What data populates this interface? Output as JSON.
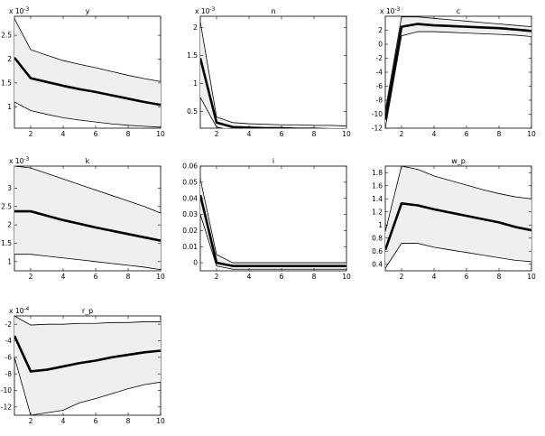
{
  "chart_data": [
    {
      "type": "line",
      "title": "y",
      "multiplier": {
        "base": "x 10",
        "exp": "-3"
      },
      "x": [
        1,
        2,
        3,
        4,
        5,
        6,
        7,
        8,
        9,
        10
      ],
      "xlim": [
        1,
        10
      ],
      "ylim": [
        0.55,
        2.9
      ],
      "xticks": [
        2,
        4,
        6,
        8,
        10
      ],
      "yticks": [
        1,
        1.5,
        2,
        2.5
      ],
      "series": [
        {
          "role": "upper",
          "values": [
            2.85,
            2.2,
            2.08,
            1.97,
            1.89,
            1.82,
            1.74,
            1.66,
            1.59,
            1.53
          ]
        },
        {
          "role": "median",
          "values": [
            2.03,
            1.6,
            1.52,
            1.44,
            1.37,
            1.31,
            1.24,
            1.17,
            1.1,
            1.04
          ]
        },
        {
          "role": "lower",
          "values": [
            1.1,
            0.92,
            0.84,
            0.77,
            0.72,
            0.68,
            0.64,
            0.61,
            0.59,
            0.57
          ]
        }
      ]
    },
    {
      "type": "line",
      "title": "n",
      "multiplier": {
        "base": "x 10",
        "exp": "-3"
      },
      "x": [
        1,
        2,
        3,
        4,
        5,
        6,
        7,
        8,
        9,
        10
      ],
      "xlim": [
        1,
        10
      ],
      "ylim": [
        0.2,
        2.2
      ],
      "xticks": [
        2,
        4,
        6,
        8,
        10
      ],
      "yticks": [
        0.5,
        1,
        1.5,
        2
      ],
      "series": [
        {
          "role": "upper",
          "values": [
            2.1,
            0.4,
            0.3,
            0.28,
            0.27,
            0.26,
            0.26,
            0.25,
            0.25,
            0.24
          ]
        },
        {
          "role": "median",
          "values": [
            1.45,
            0.3,
            0.22,
            0.21,
            0.2,
            0.2,
            0.19,
            0.19,
            0.18,
            0.18
          ]
        },
        {
          "role": "lower",
          "values": [
            0.75,
            0.22,
            0.16,
            0.15,
            0.15,
            0.14,
            0.14,
            0.14,
            0.13,
            0.13
          ]
        }
      ]
    },
    {
      "type": "line",
      "title": "c",
      "multiplier": {
        "base": "x 10",
        "exp": "-3"
      },
      "x": [
        1,
        2,
        3,
        4,
        5,
        6,
        7,
        8,
        9,
        10
      ],
      "xlim": [
        1,
        10
      ],
      "ylim": [
        -12,
        4
      ],
      "xticks": [
        2,
        4,
        6,
        8,
        10
      ],
      "yticks": [
        -12,
        -10,
        -8,
        -6,
        -4,
        -2,
        0,
        2
      ],
      "series": [
        {
          "role": "upper",
          "values": [
            -9.5,
            3.9,
            3.9,
            3.7,
            3.5,
            3.3,
            3.1,
            2.9,
            2.7,
            2.5
          ]
        },
        {
          "role": "median",
          "values": [
            -10.8,
            2.5,
            2.9,
            2.7,
            2.6,
            2.5,
            2.4,
            2.3,
            2.1,
            1.9
          ]
        },
        {
          "role": "lower",
          "values": [
            -12,
            1.2,
            1.8,
            1.8,
            1.7,
            1.6,
            1.5,
            1.4,
            1.3,
            1.1
          ]
        }
      ]
    },
    {
      "type": "line",
      "title": "k",
      "multiplier": {
        "base": "x 10",
        "exp": "-3"
      },
      "x": [
        1,
        2,
        3,
        4,
        5,
        6,
        7,
        8,
        9,
        10
      ],
      "xlim": [
        1,
        10
      ],
      "ylim": [
        0.75,
        3.6
      ],
      "xticks": [
        2,
        4,
        6,
        8,
        10
      ],
      "yticks": [
        1,
        1.5,
        2,
        2.5,
        3
      ],
      "series": [
        {
          "role": "upper",
          "values": [
            3.6,
            3.55,
            3.4,
            3.25,
            3.1,
            2.95,
            2.8,
            2.65,
            2.5,
            2.32
          ]
        },
        {
          "role": "median",
          "values": [
            2.37,
            2.37,
            2.25,
            2.13,
            2.03,
            1.93,
            1.84,
            1.75,
            1.66,
            1.57
          ]
        },
        {
          "role": "lower",
          "values": [
            1.2,
            1.2,
            1.15,
            1.1,
            1.05,
            1.0,
            0.95,
            0.9,
            0.85,
            0.78
          ]
        }
      ]
    },
    {
      "type": "line",
      "title": "i",
      "x": [
        1,
        2,
        3,
        4,
        5,
        6,
        7,
        8,
        9,
        10
      ],
      "xlim": [
        1,
        10
      ],
      "ylim": [
        -0.005,
        0.06
      ],
      "xticks": [
        2,
        4,
        6,
        8,
        10
      ],
      "yticks": [
        0,
        0.01,
        0.02,
        0.03,
        0.04,
        0.05,
        0.06
      ],
      "series": [
        {
          "role": "upper",
          "values": [
            0.052,
            0.005,
            0.0,
            0.0,
            0.0,
            0.0,
            0.0,
            0.0,
            0.0,
            0.0
          ]
        },
        {
          "role": "median",
          "values": [
            0.042,
            0.0,
            -0.002,
            -0.002,
            -0.002,
            -0.002,
            -0.002,
            -0.002,
            -0.002,
            -0.002
          ]
        },
        {
          "role": "lower",
          "values": [
            0.03,
            -0.002,
            -0.004,
            -0.004,
            -0.004,
            -0.004,
            -0.004,
            -0.004,
            -0.004,
            -0.004
          ]
        }
      ]
    },
    {
      "type": "line",
      "title": "w_p",
      "x": [
        1,
        2,
        3,
        4,
        5,
        6,
        7,
        8,
        9,
        10
      ],
      "xlim": [
        1,
        10
      ],
      "ylim": [
        0.3,
        1.9
      ],
      "xticks": [
        2,
        4,
        6,
        8,
        10
      ],
      "yticks": [
        0.4,
        0.6,
        0.8,
        1,
        1.2,
        1.4,
        1.6,
        1.8
      ],
      "series": [
        {
          "role": "upper",
          "values": [
            0.9,
            1.9,
            1.85,
            1.75,
            1.68,
            1.61,
            1.54,
            1.48,
            1.43,
            1.4
          ]
        },
        {
          "role": "median",
          "values": [
            0.62,
            1.33,
            1.3,
            1.24,
            1.19,
            1.14,
            1.09,
            1.04,
            0.97,
            0.92
          ]
        },
        {
          "role": "lower",
          "values": [
            0.34,
            0.72,
            0.72,
            0.66,
            0.62,
            0.58,
            0.54,
            0.5,
            0.46,
            0.44
          ]
        }
      ]
    },
    {
      "type": "line",
      "title": "r_p",
      "multiplier": {
        "base": "x 10",
        "exp": "-4"
      },
      "x": [
        1,
        2,
        3,
        4,
        5,
        6,
        7,
        8,
        9,
        10
      ],
      "xlim": [
        1,
        10
      ],
      "ylim": [
        -13,
        -1
      ],
      "xticks": [
        2,
        4,
        6,
        8,
        10
      ],
      "yticks": [
        -12,
        -10,
        -8,
        -6,
        -4,
        -2
      ],
      "series": [
        {
          "role": "upper",
          "values": [
            -1.0,
            -2.1,
            -2.0,
            -2.0,
            -1.9,
            -1.9,
            -1.8,
            -1.8,
            -1.7,
            -1.7
          ]
        },
        {
          "role": "median",
          "values": [
            -3.4,
            -7.7,
            -7.5,
            -7.1,
            -6.7,
            -6.4,
            -6.0,
            -5.7,
            -5.4,
            -5.2
          ]
        },
        {
          "role": "lower",
          "values": [
            -6.0,
            -13.0,
            -12.7,
            -12.4,
            -11.5,
            -11.0,
            -10.4,
            -9.8,
            -9.3,
            -9.0
          ]
        }
      ]
    }
  ]
}
